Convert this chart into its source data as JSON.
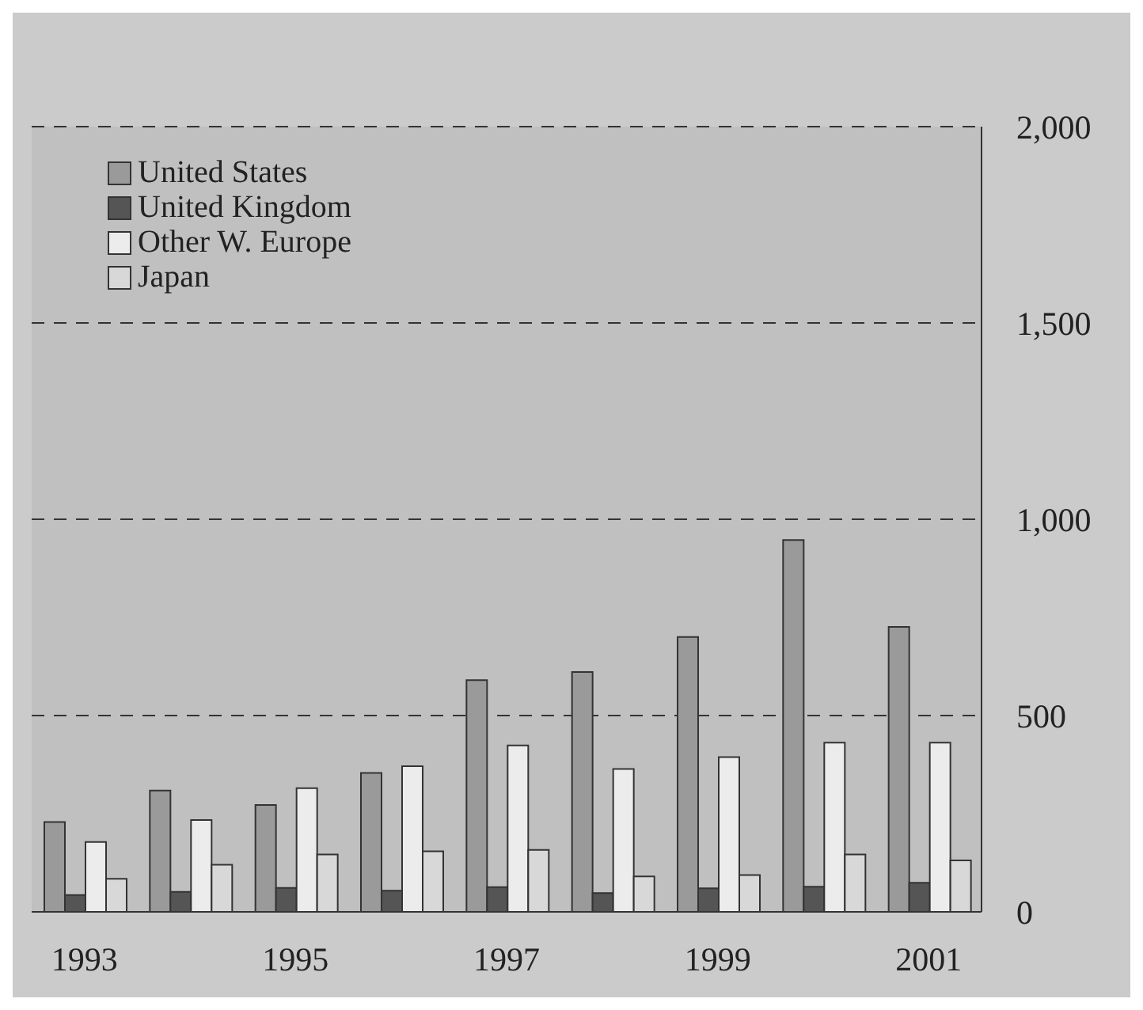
{
  "chart_data": {
    "type": "bar",
    "categories": [
      "1993",
      null,
      "1995",
      null,
      "1997",
      null,
      "1999",
      null,
      "2001"
    ],
    "series": [
      {
        "name": "United States",
        "color": "#9a9a9a",
        "values": [
          229,
          309,
          272,
          354,
          590,
          611,
          700,
          947,
          726
        ]
      },
      {
        "name": "United Kingdom",
        "color": "#555555",
        "values": [
          43,
          51,
          61,
          54,
          63,
          48,
          60,
          64,
          74
        ]
      },
      {
        "name": "Other W. Europe",
        "color": "#ececec",
        "values": [
          178,
          234,
          315,
          371,
          424,
          364,
          394,
          431,
          431
        ]
      },
      {
        "name": "Japan",
        "color": "#d8d8d8",
        "values": [
          84,
          120,
          146,
          154,
          158,
          90,
          94,
          146,
          131
        ]
      }
    ],
    "ylim": [
      0,
      2000
    ],
    "yticks": [
      0,
      {
        "value": 500,
        "label": "500"
      },
      {
        "value": 1000,
        "label": "1,000"
      },
      {
        "value": 1500,
        "label": "1,500"
      },
      {
        "value": 2000,
        "label": "2,000"
      }
    ],
    "grid": "y",
    "legend": "top left"
  }
}
